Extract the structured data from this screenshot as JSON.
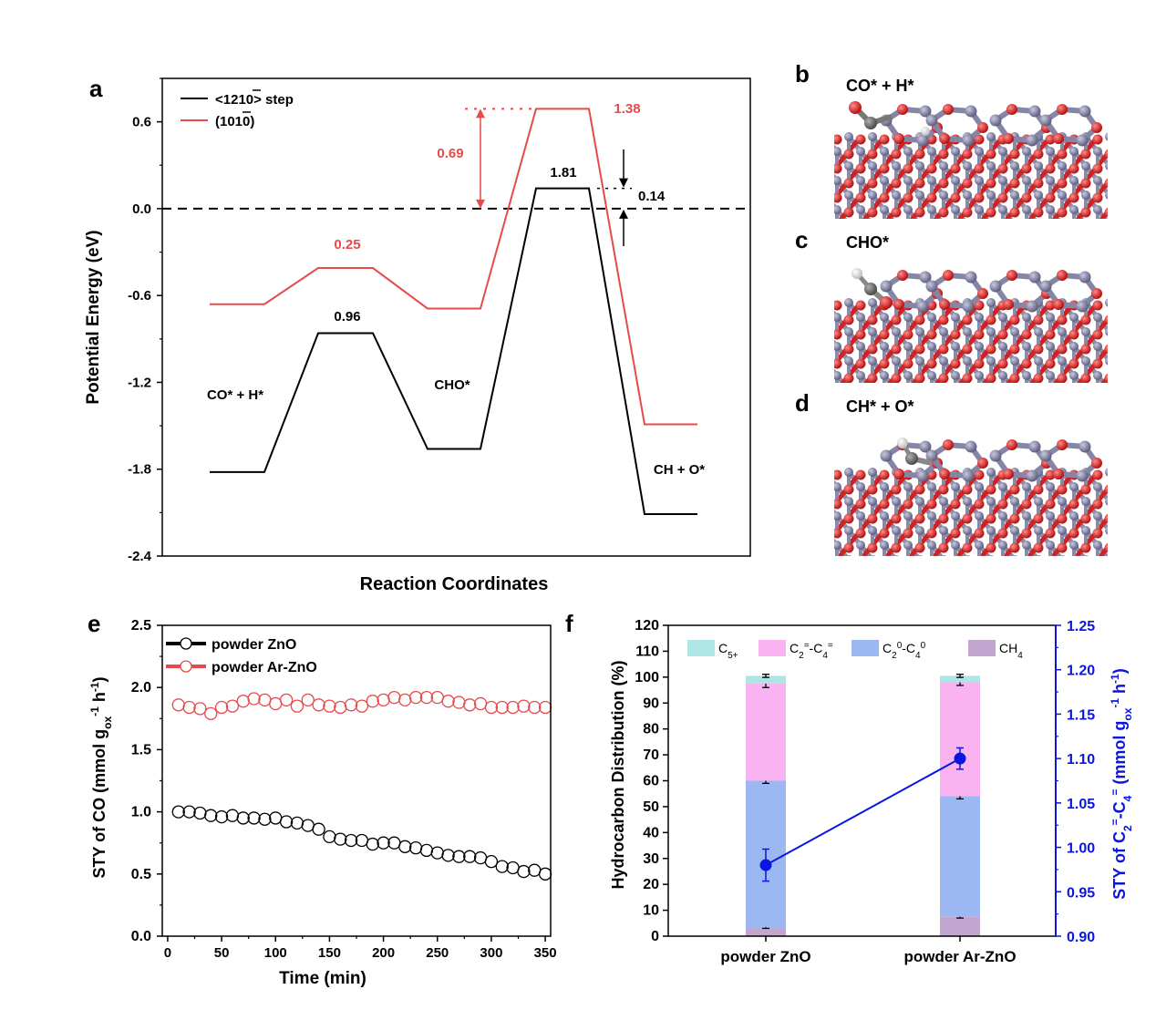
{
  "panel_labels": [
    "a",
    "b",
    "c",
    "d",
    "e",
    "f"
  ],
  "colors": {
    "black": "#000000",
    "red": "#e84a4a",
    "blue": "#0a16e0",
    "c5": "#aee6e6",
    "c2c4_olefin": "#f8b3f0",
    "c2c4_paraffin": "#9cb8f2",
    "ch4": "#c3a6cf",
    "zn_atom": "#7b7c9e",
    "o_atom": "#e21a1a",
    "c_atom": "#6e6e6e",
    "h_atom": "#ffffff"
  },
  "chart_data": [
    {
      "id": "a",
      "type": "line",
      "ylabel": "Potential Energy (eV)",
      "xlabel": "Reaction Coordinates",
      "ylim": [
        -2.4,
        0.9
      ],
      "yticks": [
        0.6,
        0.0,
        -0.6,
        -1.2,
        -1.8,
        -2.4
      ],
      "ytick_labels": [
        "0.6",
        "0.0",
        "-0.6",
        "-1.2",
        "-1.8",
        "-2.4"
      ],
      "legend": [
        "<1210> step",
        "(1010)"
      ],
      "legend_placement": "top-left",
      "series": [
        {
          "name": "<1210> step",
          "color": "#000000",
          "values": [
            -1.82,
            -1.82,
            -0.86,
            -0.86,
            -1.66,
            -1.66,
            0.14,
            0.14,
            -2.11,
            -2.11
          ]
        },
        {
          "name": "(1010)",
          "color": "#e84a4a",
          "values": [
            -0.66,
            -0.66,
            -0.41,
            -0.41,
            -0.69,
            -0.69,
            0.69,
            0.69,
            -1.49,
            -1.49
          ]
        }
      ],
      "reference_line": 0.0,
      "annotations": {
        "barrier_black_1": "0.96",
        "barrier_black_2": "1.81",
        "barrier_red_1": "0.25",
        "barrier_red_2": "1.38",
        "diff_red": "0.69",
        "diff_black": "0.14",
        "state_1": "CO* + H*",
        "state_2": "CHO*",
        "state_3": "CH + O*"
      }
    },
    {
      "id": "e",
      "type": "scatter",
      "xlabel": "Time (min)",
      "ylabel": "STY of CO (mmol g<sub>ox</sub><sup>-1</sup> h<sup>-1</sup>)",
      "xlim": [
        -5,
        355
      ],
      "ylim": [
        0,
        2.5
      ],
      "xticks": [
        0,
        50,
        100,
        150,
        200,
        250,
        300,
        350
      ],
      "yticks": [
        0.0,
        0.5,
        1.0,
        1.5,
        2.0,
        2.5
      ],
      "ytick_labels": [
        "0.0",
        "0.5",
        "1.0",
        "1.5",
        "2.0",
        "2.5"
      ],
      "legend_placement": "top-left",
      "x": [
        10,
        20,
        30,
        40,
        50,
        60,
        70,
        80,
        90,
        100,
        110,
        120,
        130,
        140,
        150,
        160,
        170,
        180,
        190,
        200,
        210,
        220,
        230,
        240,
        250,
        260,
        270,
        280,
        290,
        300,
        310,
        320,
        330,
        340,
        350
      ],
      "series": [
        {
          "name": "powder ZnO",
          "color": "#000000",
          "values": [
            1.0,
            1.0,
            0.99,
            0.97,
            0.96,
            0.97,
            0.95,
            0.95,
            0.94,
            0.95,
            0.92,
            0.91,
            0.89,
            0.86,
            0.8,
            0.78,
            0.77,
            0.77,
            0.74,
            0.75,
            0.75,
            0.72,
            0.71,
            0.69,
            0.67,
            0.65,
            0.64,
            0.64,
            0.63,
            0.6,
            0.56,
            0.55,
            0.52,
            0.53,
            0.5
          ]
        },
        {
          "name": "powder Ar-ZnO",
          "color": "#e84a4a",
          "values": [
            1.86,
            1.84,
            1.83,
            1.79,
            1.84,
            1.85,
            1.89,
            1.91,
            1.9,
            1.87,
            1.9,
            1.85,
            1.9,
            1.86,
            1.85,
            1.84,
            1.86,
            1.85,
            1.89,
            1.9,
            1.92,
            1.9,
            1.92,
            1.92,
            1.92,
            1.89,
            1.88,
            1.86,
            1.87,
            1.84,
            1.84,
            1.84,
            1.85,
            1.84,
            1.84
          ]
        }
      ]
    },
    {
      "id": "f",
      "type": "bar",
      "categories": [
        "powder ZnO",
        "powder Ar-ZnO"
      ],
      "ylabel": "Hydrocarbon Distribution (%)",
      "ylim": [
        0,
        120
      ],
      "yticks": [
        0,
        10,
        20,
        30,
        40,
        50,
        60,
        70,
        80,
        90,
        100,
        110,
        120
      ],
      "ylabel_right": "STY of C<tspan baseline-shift='sub' font-size='11'>2</tspan><tspan baseline-shift='super' font-size='11'>=</tspan>-C<tspan baseline-shift='sub' font-size='11'>4</tspan><tspan baseline-shift='super' font-size='11'>=</tspan> (mmol g<tspan baseline-shift='sub' font-size='11'>ox</tspan><tspan baseline-shift='super' font-size='11'>-1</tspan> h<tspan baseline-shift='super' font-size='11'>-1</tspan>)",
      "ylim_right": [
        0.9,
        1.25
      ],
      "yticks_right": [
        0.9,
        0.95,
        1.0,
        1.05,
        1.1,
        1.15,
        1.2,
        1.25
      ],
      "ytick_labels_right": [
        "0.90",
        "0.95",
        "1.00",
        "1.05",
        "1.10",
        "1.15",
        "1.20",
        "1.25"
      ],
      "legend_placement": "top",
      "stack": [
        {
          "name": "CH4",
          "label": "CH<tspan baseline-shift='sub' font-size='10'>4</tspan>",
          "color": "#c3a6cf",
          "values": [
            3.5,
            7.5
          ],
          "err": [
            0.5,
            0.5
          ]
        },
        {
          "name": "C2^0-C4^0",
          "label": "C<tspan baseline-shift='sub' font-size='10'>2</tspan><tspan baseline-shift='super' font-size='10'>0</tspan>-C<tspan baseline-shift='sub' font-size='10'>4</tspan><tspan baseline-shift='super' font-size='10'>0</tspan>",
          "color": "#9cb8f2",
          "values": [
            56.5,
            46.5
          ],
          "err": [
            1.0,
            1.0
          ]
        },
        {
          "name": "C2=-C4=",
          "label": "C<tspan baseline-shift='sub' font-size='10'>2</tspan><tspan baseline-shift='super' font-size='10'>=</tspan>-C<tspan baseline-shift='sub' font-size='10'>4</tspan><tspan baseline-shift='super' font-size='10'>=</tspan>",
          "color": "#f8b3f0",
          "values": [
            37.5,
            44.0
          ],
          "err": [
            1.5,
            1.2
          ]
        },
        {
          "name": "C5+",
          "label": "C<tspan baseline-shift='sub' font-size='10'>5+</tspan>",
          "color": "#aee6e6",
          "values": [
            3.0,
            2.5
          ],
          "err": [
            0.6,
            0.6
          ]
        }
      ],
      "legend_order": [
        "C5+",
        "C2=-C4=",
        "C2^0-C4^0",
        "CH4"
      ],
      "line": {
        "name": "STY of C2=-C4=",
        "color": "#0a16e0",
        "values": [
          0.98,
          1.1
        ],
        "err": [
          0.018,
          0.012
        ]
      }
    }
  ],
  "structures": [
    {
      "id": "b",
      "label": "CO* + H*"
    },
    {
      "id": "c",
      "label": "CHO*"
    },
    {
      "id": "d",
      "label": "CH* + O*"
    }
  ]
}
